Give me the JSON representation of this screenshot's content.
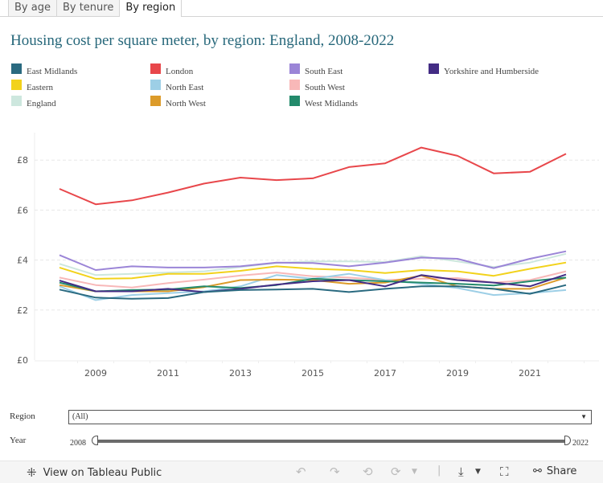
{
  "tabs": [
    {
      "label": "By age",
      "active": false
    },
    {
      "label": "By tenure",
      "active": false
    },
    {
      "label": "By region",
      "active": true
    }
  ],
  "chart_data": {
    "type": "line",
    "title": "Housing cost per square meter, by region: England, 2008-2022",
    "xlabel": "",
    "ylabel": "",
    "x": [
      2008,
      2009,
      2010,
      2011,
      2012,
      2013,
      2014,
      2015,
      2016,
      2017,
      2018,
      2019,
      2020,
      2021,
      2022
    ],
    "xticks": [
      "2009",
      "2011",
      "2013",
      "2015",
      "2017",
      "2019",
      "2021"
    ],
    "yticks": [
      "£0",
      "£2",
      "£4",
      "£6",
      "£8"
    ],
    "ylim": [
      0,
      9
    ],
    "grid": true,
    "legend_position": "top",
    "series": [
      {
        "name": "East Midlands",
        "color": "#2a6a80",
        "values": [
          2.82,
          2.5,
          2.45,
          2.48,
          2.72,
          2.8,
          2.82,
          2.85,
          2.72,
          2.85,
          2.95,
          2.95,
          2.85,
          2.65,
          3.0
        ]
      },
      {
        "name": "Eastern",
        "color": "#f2d21b",
        "values": [
          3.7,
          3.25,
          3.27,
          3.45,
          3.45,
          3.57,
          3.75,
          3.65,
          3.6,
          3.48,
          3.6,
          3.55,
          3.37,
          3.65,
          3.9
        ]
      },
      {
        "name": "England",
        "color": "#cde7de",
        "values": [
          3.85,
          3.4,
          3.45,
          3.5,
          3.55,
          3.72,
          3.88,
          3.95,
          3.95,
          3.92,
          4.15,
          3.95,
          3.72,
          3.9,
          4.25
        ]
      },
      {
        "name": "London",
        "color": "#e8474b",
        "values": [
          6.85,
          6.23,
          6.39,
          6.7,
          7.06,
          7.3,
          7.2,
          7.27,
          7.72,
          7.87,
          8.5,
          8.17,
          7.47,
          7.53,
          8.25
        ]
      },
      {
        "name": "North East",
        "color": "#9dcfe6",
        "values": [
          2.95,
          2.4,
          2.6,
          2.68,
          2.75,
          2.95,
          3.4,
          3.25,
          3.45,
          3.2,
          3.05,
          2.88,
          2.6,
          2.68,
          2.8
        ]
      },
      {
        "name": "North West",
        "color": "#dc9b2a",
        "values": [
          3.0,
          2.75,
          2.75,
          2.75,
          2.92,
          3.2,
          3.22,
          3.2,
          3.05,
          3.1,
          3.38,
          2.95,
          2.85,
          2.85,
          3.3
        ]
      },
      {
        "name": "South East",
        "color": "#9b85d7",
        "values": [
          4.2,
          3.6,
          3.75,
          3.7,
          3.7,
          3.75,
          3.9,
          3.88,
          3.75,
          3.9,
          4.1,
          4.05,
          3.68,
          4.05,
          4.35
        ]
      },
      {
        "name": "South West",
        "color": "#f8b8b8",
        "values": [
          3.3,
          3.0,
          2.9,
          3.08,
          3.22,
          3.38,
          3.5,
          3.35,
          3.3,
          3.2,
          3.25,
          3.28,
          3.1,
          3.2,
          3.55
        ]
      },
      {
        "name": "West Midlands",
        "color": "#238a6b",
        "values": [
          3.1,
          2.75,
          2.8,
          2.82,
          2.95,
          2.88,
          3.0,
          3.25,
          3.2,
          3.15,
          3.1,
          3.05,
          2.98,
          3.15,
          3.3
        ]
      },
      {
        "name": "Yorkshire and Humberside",
        "color": "#432c84",
        "values": [
          3.18,
          2.75,
          2.75,
          2.85,
          2.72,
          2.85,
          3.02,
          3.15,
          3.2,
          2.95,
          3.4,
          3.2,
          3.1,
          2.95,
          3.42
        ]
      }
    ]
  },
  "filters": {
    "region_label": "Region",
    "region_value": "(All)",
    "year_label": "Year",
    "year_min": "2008",
    "year_max": "2022"
  },
  "toolbar": {
    "view_label": "View on Tableau Public",
    "share_label": "Share"
  }
}
